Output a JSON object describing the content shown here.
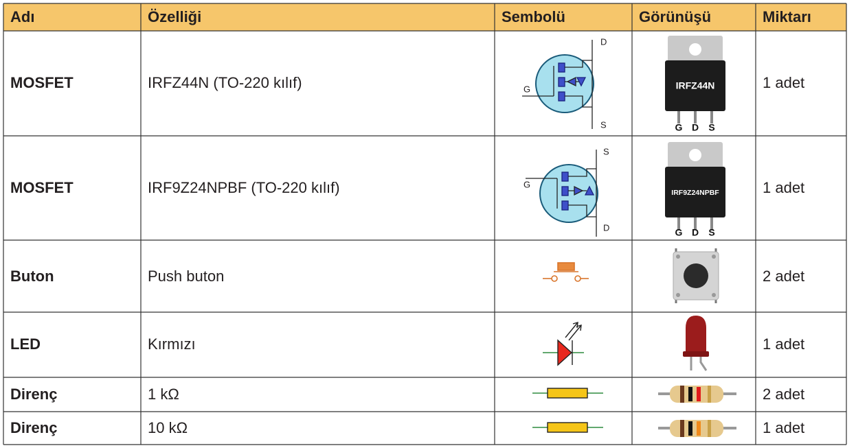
{
  "table": {
    "header": [
      "Adı",
      "Özelliği",
      "Sembolü",
      "Görünüşü",
      "Miktarı"
    ],
    "rows": [
      {
        "name": "MOSFET",
        "spec": "IRFZ44N (TO-220 kılıf)",
        "qty": "1 adet",
        "symbol_labels": [
          "D",
          "G",
          "S"
        ],
        "part_marking": "IRFZ44N",
        "part_pins": [
          "G",
          "D",
          "S"
        ]
      },
      {
        "name": "MOSFET",
        "spec": "IRF9Z24NPBF (TO-220 kılıf)",
        "qty": "1 adet",
        "symbol_labels": [
          "S",
          "G",
          "D"
        ],
        "part_marking": "IRF9Z24NPBF",
        "part_pins": [
          "G",
          "D",
          "S"
        ]
      },
      {
        "name": "Buton",
        "spec": "Push buton",
        "qty": "2 adet"
      },
      {
        "name": "LED",
        "spec": "Kırmızı",
        "qty": "1 adet"
      },
      {
        "name": "Direnç",
        "spec": "1 kΩ",
        "qty": "2 adet"
      },
      {
        "name": "Direnç",
        "spec": "10 kΩ",
        "qty": "1 adet"
      }
    ]
  }
}
